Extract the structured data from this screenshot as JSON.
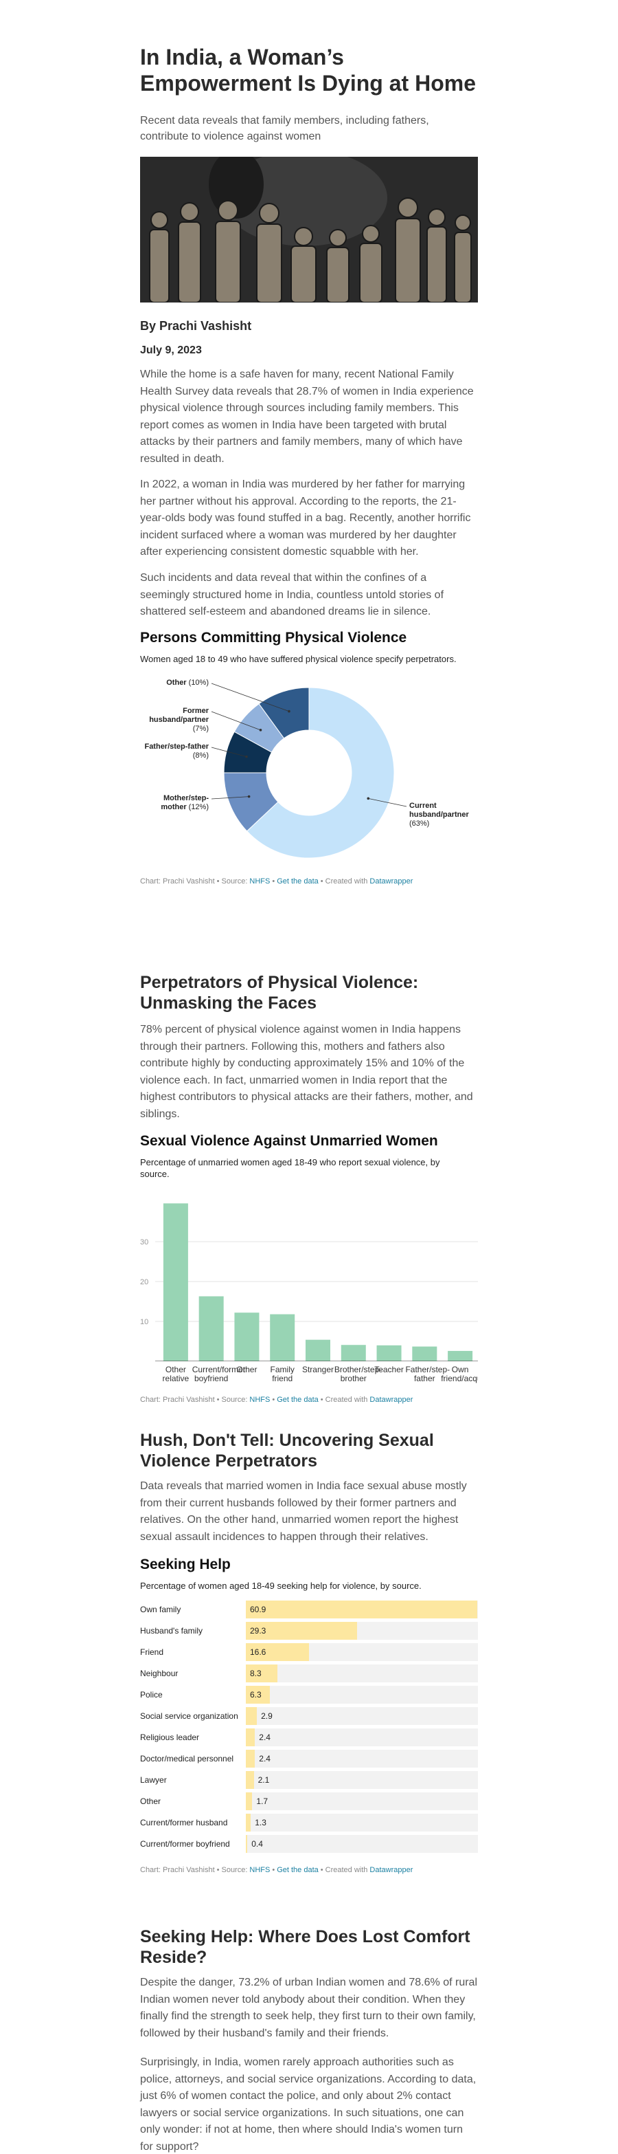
{
  "article": {
    "title": "In India, a Woman’s Empowerment Is Dying at Home",
    "subtitle": "Recent data reveals that family members, including fathers, contribute to violence against women",
    "author": "By Prachi Vashisht",
    "date": "July 9, 2023",
    "paragraphs": [
      "While the home is a safe haven for many, recent National Family Health Survey data reveals that 28.7% of women in India experience physical violence through sources including family members. This report comes as women in India have been targeted with brutal attacks by their partners and family members, many of which have resulted in death.",
      "In 2022, a woman in India was murdered by her father for marrying her partner without his approval. According to the reports, the 21-year-olds body was found stuffed in a bag. Recently, another horrific incident surfaced where a woman was murdered by her daughter after experiencing consistent domestic squabble with her.",
      "Such incidents and data reveal that within the confines of a seemingly structured home in India, countless untold stories of shattered self-esteem and abandoned dreams lie in silence."
    ],
    "sections": [
      {
        "heading": "Perpetrators of Physical Violence: Unmasking the Faces",
        "paragraphs": [
          "78% percent of physical violence against women in India happens through their partners. Following this, mothers and fathers also contribute highly by conducting approximately 15% and 10% of the violence each. In fact, unmarried women in India report that the highest contributors to physical attacks are their fathers, mother, and siblings."
        ]
      },
      {
        "heading": "Hush, Don't Tell: Uncovering Sexual Violence Perpetrators",
        "paragraphs": [
          "Data reveals that married women in India face sexual abuse mostly from their current husbands followed by their former partners and relatives. On the other hand, unmarried women report the highest sexual assault incidences to happen through their relatives."
        ]
      },
      {
        "heading": "Seeking Help: Where Does Lost Comfort Reside?",
        "paragraphs": [
          "Despite the danger, 73.2% of urban Indian women and 78.6% of rural Indian women never told anybody about their condition. When they finally find the strength to seek help, they first turn to their own family, followed by their husband's family and their friends.",
          "Surprisingly, in India, women rarely approach authorities such as police, attorneys, and social service organizations. According to data, just 6% of women contact the police, and only about 2% contact lawyers or social service organizations. In such situations, one can only wonder: if not at home, then where should India's women turn for support?"
        ]
      }
    ]
  },
  "footer": {
    "credit": "Chart: Prachi Vashisht",
    "separator": "•",
    "source_label": "Source:",
    "source": "NHFS",
    "get_data": "Get the data",
    "created": "Created with",
    "tool": "Datawrapper"
  },
  "chart_data": [
    {
      "type": "donut",
      "title": "Persons Committing Physical Violence",
      "subtitle": "Women aged 18 to 49 who have suffered physical violence specify perpetrators.",
      "categories": [
        "Current husband/partner",
        "Mother/step-mother",
        "Father/step-father",
        "Former husband/partner",
        "Other"
      ],
      "values": [
        63,
        12,
        8,
        7,
        10
      ],
      "value_labels": [
        "(63%)",
        "(12%)",
        "(8%)",
        "(7%)",
        "(10%)"
      ],
      "colors": [
        "#c4e3fa",
        "#6b8ec2",
        "#0d3152",
        "#92b2dc",
        "#2f5a8a"
      ]
    },
    {
      "type": "bar",
      "title": "Sexual Violence Against Unmarried Women",
      "subtitle": "Percentage of unmarried women aged 18-49 who report sexual violence, by source.",
      "categories": [
        "Other relative",
        "Current/former boyfriend",
        "Other",
        "Family friend",
        "Stranger",
        "Brother/step-brother",
        "Teacher",
        "Father/step-father",
        "Own friend/acquaintance"
      ],
      "values": [
        39.6,
        16.3,
        12.2,
        11.8,
        5.4,
        4.1,
        4.0,
        3.7,
        2.6
      ],
      "color": "#98d4b4",
      "ylim": [
        0,
        40
      ],
      "yticks": [
        10,
        20,
        30
      ],
      "grid": true
    },
    {
      "type": "hbar",
      "title": "Seeking Help",
      "subtitle": "Percentage of women aged 18-49 seeking help for violence, by source.",
      "categories": [
        "Own family",
        "Husband's family",
        "Friend",
        "Neighbour",
        "Police",
        "Social service organization",
        "Religious leader",
        "Doctor/medical personnel",
        "Lawyer",
        "Other",
        "Current/former husband",
        "Current/former boyfriend"
      ],
      "values": [
        60.9,
        29.3,
        16.6,
        8.3,
        6.3,
        2.9,
        2.4,
        2.4,
        2.1,
        1.7,
        1.3,
        0.4
      ],
      "color": "#fde7a0",
      "xlim": [
        0,
        61
      ]
    }
  ]
}
